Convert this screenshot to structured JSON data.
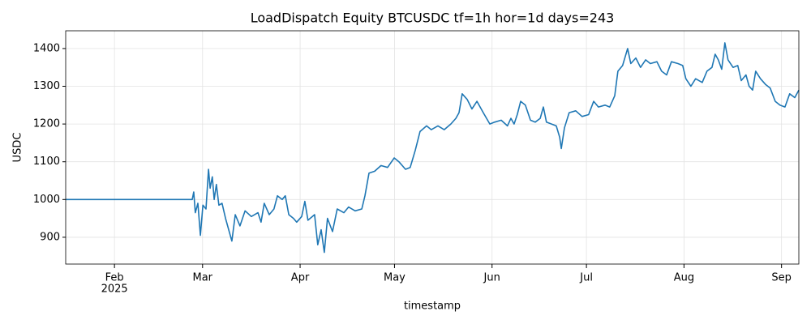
{
  "chart_data": {
    "type": "line",
    "title": "LoadDispatch Equity BTCUSDC tf=1h hor=1d days=243",
    "x_label": "timestamp",
    "y_label": "USDC",
    "x_year_label": "2025",
    "x": [
      15.5,
      55.7,
      56.2,
      56.7,
      57.5,
      58.3,
      59.1,
      60.1,
      60.9,
      61.4,
      62.1,
      62.7,
      63.4,
      64.2,
      65.2,
      66.3,
      68.3,
      69.4,
      70.9,
      72.5,
      74.5,
      76.6,
      77.6,
      78.6,
      80.2,
      81.7,
      82.8,
      84.3,
      85.3,
      86.4,
      87.9,
      88.9,
      90.5,
      91.5,
      92.5,
      94.6,
      95.6,
      96.7,
      97.7,
      98.7,
      100.3,
      101.8,
      103.9,
      105.4,
      107.5,
      109.6,
      110.6,
      111.9,
      113.7,
      115.7,
      117.8,
      119.9,
      121.4,
      123.5,
      125.0,
      126.6,
      128.1,
      130.2,
      131.7,
      133.8,
      135.8,
      137.9,
      139.5,
      140.5,
      141.5,
      143.1,
      144.6,
      146.2,
      148.2,
      150.3,
      151.8,
      153.9,
      155.9,
      157.0,
      158.0,
      159.0,
      160.1,
      161.6,
      163.2,
      164.7,
      166.3,
      167.3,
      168.3,
      169.9,
      171.4,
      172.5,
      173.0,
      174.0,
      175.5,
      177.6,
      179.6,
      181.7,
      183.3,
      184.8,
      186.9,
      188.4,
      190.0,
      191.0,
      192.5,
      194.1,
      195.1,
      196.7,
      198.2,
      199.8,
      201.3,
      203.4,
      204.9,
      206.5,
      208.0,
      210.1,
      211.6,
      212.6,
      214.2,
      215.7,
      217.8,
      219.3,
      220.9,
      221.9,
      222.9,
      224.0,
      225.0,
      226.0,
      227.6,
      229.1,
      230.2,
      231.7,
      232.7,
      233.8,
      234.8,
      236.3,
      237.9,
      239.4,
      241.0,
      242.5,
      244.1,
      245.6,
      247.2,
      248.5
    ],
    "series": [
      {
        "name": "equity",
        "color": "#1f77b4",
        "values": [
          1000,
          1000,
          1020,
          965,
          990,
          905,
          985,
          975,
          1080,
          1030,
          1060,
          1000,
          1040,
          985,
          990,
          950,
          890,
          960,
          930,
          970,
          955,
          965,
          940,
          990,
          960,
          975,
          1010,
          1000,
          1010,
          960,
          950,
          940,
          955,
          995,
          945,
          960,
          880,
          920,
          860,
          950,
          915,
          975,
          965,
          980,
          970,
          975,
          1010,
          1070,
          1075,
          1090,
          1085,
          1110,
          1100,
          1080,
          1085,
          1130,
          1180,
          1195,
          1185,
          1195,
          1185,
          1200,
          1215,
          1230,
          1280,
          1265,
          1240,
          1260,
          1230,
          1200,
          1205,
          1210,
          1195,
          1215,
          1200,
          1225,
          1260,
          1250,
          1210,
          1205,
          1215,
          1245,
          1205,
          1200,
          1195,
          1165,
          1135,
          1190,
          1230,
          1235,
          1220,
          1225,
          1260,
          1245,
          1250,
          1245,
          1275,
          1340,
          1355,
          1400,
          1360,
          1375,
          1350,
          1370,
          1360,
          1365,
          1340,
          1330,
          1365,
          1360,
          1355,
          1320,
          1300,
          1320,
          1310,
          1340,
          1350,
          1385,
          1370,
          1345,
          1415,
          1370,
          1350,
          1355,
          1315,
          1330,
          1300,
          1290,
          1340,
          1320,
          1305,
          1295,
          1260,
          1250,
          1245,
          1280,
          1270,
          1290
        ]
      }
    ],
    "xlim": [
      15.5,
      248.5
    ],
    "xticks": [
      {
        "value": 31,
        "label": "Feb"
      },
      {
        "value": 59,
        "label": "Mar"
      },
      {
        "value": 90,
        "label": "Apr"
      },
      {
        "value": 120,
        "label": "May"
      },
      {
        "value": 151,
        "label": "Jun"
      },
      {
        "value": 181,
        "label": "Jul"
      },
      {
        "value": 212,
        "label": "Aug"
      },
      {
        "value": 243,
        "label": "Sep"
      }
    ],
    "ylim": [
      829,
      1447
    ],
    "yticks": [
      900,
      1000,
      1100,
      1200,
      1300,
      1400
    ],
    "grid": true
  }
}
